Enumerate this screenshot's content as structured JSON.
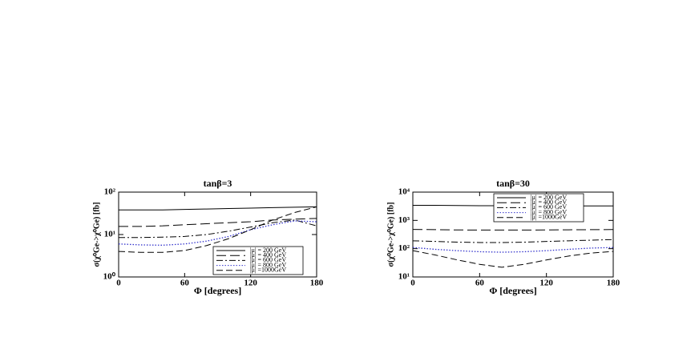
{
  "chart_data": [
    {
      "type": "line",
      "title": "tanβ=3",
      "x_label": "Φ [degrees]",
      "y_label": "σ(χ⁰Ge->χ⁰Ge) [fb]",
      "x": [
        0,
        20,
        40,
        60,
        80,
        100,
        120,
        140,
        160,
        180
      ],
      "xlim": [
        0,
        180
      ],
      "xticks": [
        0,
        60,
        120,
        180
      ],
      "ylim": [
        1,
        100
      ],
      "log_y": true,
      "yticks": [
        {
          "value": 1,
          "label": "10⁰"
        },
        {
          "value": 10,
          "label": "10¹"
        },
        {
          "value": 100,
          "label": "10²"
        }
      ],
      "legend": "lower right",
      "series": [
        {
          "name": "|μ| = 200 GeV",
          "color": "#000000",
          "dash": "solid",
          "values": [
            38,
            38,
            38,
            39,
            40,
            41,
            42,
            43,
            44,
            45
          ]
        },
        {
          "name": "|μ| = 400 GeV",
          "color": "#000000",
          "dash": "longdash",
          "values": [
            15.5,
            15.5,
            16,
            17,
            18,
            19,
            20,
            22,
            23,
            24
          ]
        },
        {
          "name": "|μ| = 600 GeV",
          "color": "#000000",
          "dash": "dashdot",
          "values": [
            8.5,
            8.5,
            8.7,
            9,
            10,
            12,
            15,
            19,
            22,
            16
          ]
        },
        {
          "name": "|μ| = 800 GeV",
          "color": "#3333cc",
          "dash": "dotted",
          "values": [
            6,
            5.7,
            5.6,
            6,
            7,
            9,
            13,
            17,
            21,
            20
          ]
        },
        {
          "name": "|μ| =1000GeV",
          "color": "#000000",
          "dash": "dashed",
          "values": [
            4,
            3.8,
            3.8,
            4.2,
            5.5,
            8,
            13,
            22,
            33,
            45
          ]
        }
      ]
    },
    {
      "type": "line",
      "title": "tanβ=30",
      "x_label": "Φ [degrees]",
      "y_label": "σ(χ⁰Ge->χ⁰Ge) [fb]",
      "x": [
        0,
        20,
        40,
        60,
        80,
        100,
        120,
        140,
        160,
        180
      ],
      "xlim": [
        0,
        180
      ],
      "xticks": [
        0,
        60,
        120,
        180
      ],
      "ylim": [
        10,
        10000
      ],
      "log_y": true,
      "yticks": [
        {
          "value": 10,
          "label": "10¹"
        },
        {
          "value": 100,
          "label": "10²"
        },
        {
          "value": 1000,
          "label": "10³"
        },
        {
          "value": 10000,
          "label": "10⁴"
        }
      ],
      "legend": "upper center",
      "series": [
        {
          "name": "|μ| = 200 GeV",
          "color": "#000000",
          "dash": "solid",
          "values": [
            3400,
            3400,
            3350,
            3300,
            3300,
            3300,
            3300,
            3250,
            3250,
            3250
          ]
        },
        {
          "name": "|μ| = 400 GeV",
          "color": "#000000",
          "dash": "longdash",
          "values": [
            480,
            470,
            460,
            455,
            455,
            455,
            460,
            465,
            470,
            475
          ]
        },
        {
          "name": "|μ| = 600 GeV",
          "color": "#000000",
          "dash": "dashdot",
          "values": [
            190,
            180,
            170,
            165,
            165,
            170,
            180,
            190,
            200,
            210
          ]
        },
        {
          "name": "|μ| = 800 GeV",
          "color": "#3333cc",
          "dash": "dotted",
          "values": [
            110,
            95,
            85,
            78,
            75,
            78,
            85,
            95,
            105,
            110
          ]
        },
        {
          "name": "|μ| =1000GeV",
          "color": "#000000",
          "dash": "dashed",
          "values": [
            85,
            60,
            40,
            28,
            22,
            28,
            40,
            55,
            70,
            80
          ]
        }
      ]
    }
  ]
}
